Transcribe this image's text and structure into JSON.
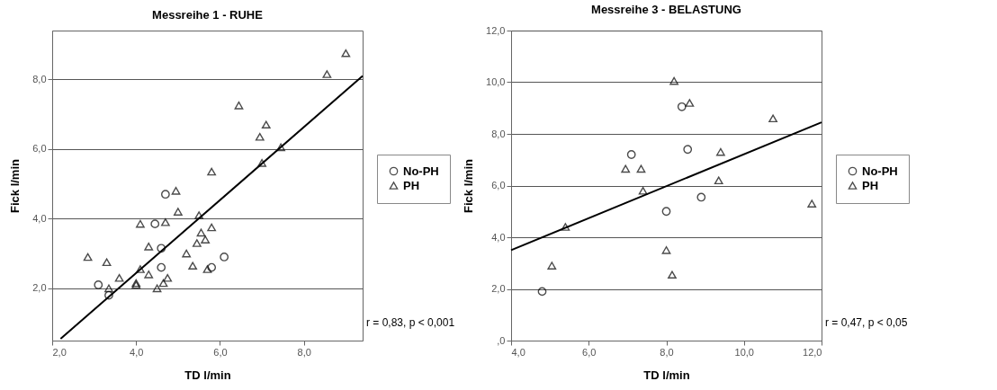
{
  "chart_data": [
    {
      "type": "scatter",
      "title": "Messreihe 1 - RUHE",
      "xlabel": "TD l/min",
      "ylabel": "Fick l/min",
      "xlim": [
        2,
        9.4
      ],
      "ylim": [
        0.5,
        9.4
      ],
      "xticks": [
        {
          "value": 2,
          "label": "2,0"
        },
        {
          "value": 4,
          "label": "4,0"
        },
        {
          "value": 6,
          "label": "6,0"
        },
        {
          "value": 8,
          "label": "8,0"
        }
      ],
      "yticks": [
        {
          "value": 2,
          "label": "2,0"
        },
        {
          "value": 4,
          "label": "4,0"
        },
        {
          "value": 6,
          "label": "6,0"
        },
        {
          "value": 8,
          "label": "8,0"
        }
      ],
      "grid": "y",
      "legend": "right",
      "annotations": [
        "r = 0,83, p < 0,001"
      ],
      "series": [
        {
          "name": "No-PH",
          "color": "#000000",
          "marker": "circle",
          "x": [
            3.1,
            3.35,
            4.45,
            4.6,
            4.6,
            4.7,
            5.8,
            6.1
          ],
          "values": [
            2.1,
            1.8,
            3.85,
            3.15,
            2.6,
            4.7,
            2.6,
            2.9
          ]
        },
        {
          "name": "PH",
          "color": "#000000",
          "marker": "triangle",
          "x": [
            2.85,
            3.3,
            3.35,
            3.6,
            4.0,
            4.0,
            4.1,
            4.1,
            4.3,
            4.3,
            4.5,
            4.65,
            4.7,
            4.75,
            4.95,
            5.0,
            5.2,
            5.35,
            5.45,
            5.5,
            5.55,
            5.65,
            5.7,
            5.8,
            5.8,
            6.45,
            6.95,
            7.1,
            7.0,
            7.45,
            8.55,
            9.0
          ],
          "values": [
            2.9,
            2.75,
            2.0,
            2.3,
            2.1,
            2.15,
            2.55,
            3.85,
            3.2,
            2.4,
            2.0,
            2.15,
            3.9,
            2.3,
            4.8,
            4.2,
            3.0,
            2.65,
            3.3,
            4.1,
            3.6,
            3.4,
            2.55,
            3.75,
            5.35,
            7.25,
            6.35,
            6.7,
            5.6,
            6.05,
            8.15,
            8.75
          ]
        },
        {
          "type": "line",
          "color": "#000000",
          "x": [
            2.2,
            9.4
          ],
          "values": [
            0.55,
            8.1
          ]
        }
      ]
    },
    {
      "type": "scatter",
      "title": "Messreihe 3 - BELASTUNG",
      "xlabel": "TD l/min",
      "ylabel": "Fick l/min",
      "xlim": [
        4,
        12
      ],
      "ylim": [
        0,
        12
      ],
      "xticks": [
        {
          "value": 4,
          "label": "4,0"
        },
        {
          "value": 6,
          "label": "6,0"
        },
        {
          "value": 8,
          "label": "8,0"
        },
        {
          "value": 10,
          "label": "10,0"
        },
        {
          "value": 12,
          "label": "12,0"
        }
      ],
      "yticks": [
        {
          "value": 0,
          "label": ",0"
        },
        {
          "value": 2,
          "label": "2,0"
        },
        {
          "value": 4,
          "label": "4,0"
        },
        {
          "value": 6,
          "label": "6,0"
        },
        {
          "value": 8,
          "label": "8,0"
        },
        {
          "value": 10,
          "label": "10,0"
        },
        {
          "value": 12,
          "label": "12,0"
        }
      ],
      "grid": "y",
      "legend": "right",
      "annotations": [
        "r = 0,47, p < 0,05"
      ],
      "series": [
        {
          "name": "No-PH",
          "color": "#000000",
          "marker": "circle",
          "x": [
            4.8,
            7.1,
            8.0,
            8.4,
            8.55,
            8.9
          ],
          "values": [
            1.9,
            7.2,
            5.0,
            9.05,
            7.4,
            5.55
          ]
        },
        {
          "name": "PH",
          "color": "#000000",
          "marker": "triangle",
          "x": [
            5.05,
            5.4,
            6.95,
            7.35,
            7.4,
            8.0,
            8.15,
            8.2,
            8.6,
            9.4,
            9.35,
            10.75,
            11.75
          ],
          "values": [
            2.9,
            4.4,
            6.65,
            6.65,
            5.8,
            3.5,
            2.55,
            10.05,
            9.2,
            7.3,
            6.2,
            8.6,
            5.3
          ]
        },
        {
          "type": "line",
          "color": "#000000",
          "x": [
            4,
            12
          ],
          "values": [
            3.5,
            8.45
          ]
        }
      ]
    }
  ]
}
